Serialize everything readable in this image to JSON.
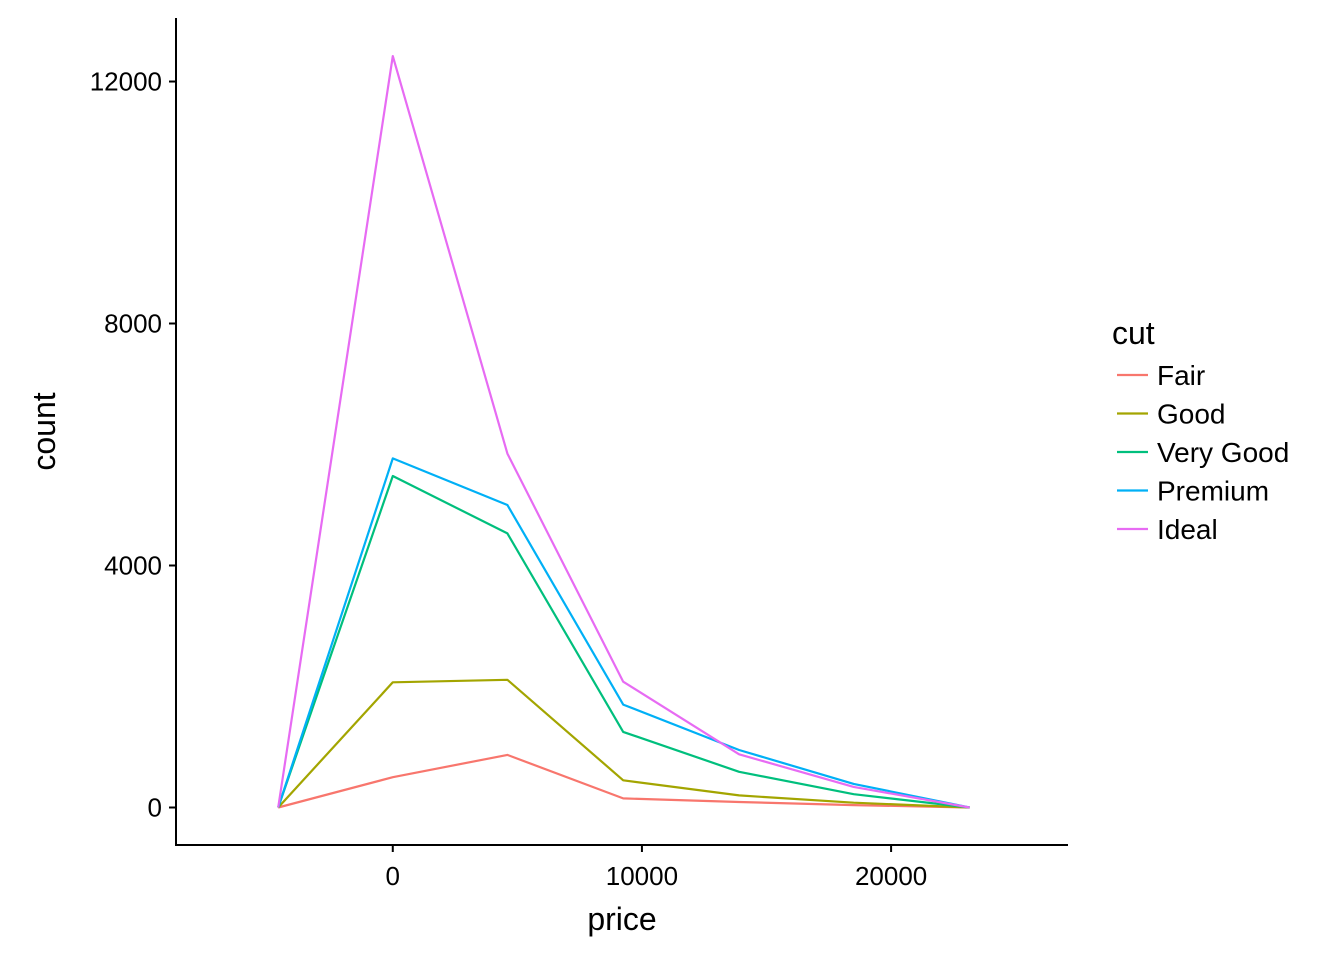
{
  "chart_data": {
    "type": "line",
    "xlabel": "price",
    "ylabel": "count",
    "xlim": [
      -8700,
      27100
    ],
    "ylim": [
      -620,
      13050
    ],
    "x_ticks": [
      0,
      10000,
      20000
    ],
    "y_ticks": [
      0,
      4000,
      8000,
      12000
    ],
    "grid": false,
    "legend": {
      "title": "cut",
      "placement": "right"
    },
    "x": [
      -4600,
      0,
      4600,
      9250,
      13900,
      18500,
      23150
    ],
    "series": [
      {
        "name": "Fair",
        "color": "#F8766D",
        "values": [
          0,
          500,
          870,
          150,
          90,
          40,
          0
        ]
      },
      {
        "name": "Good",
        "color": "#A3A500",
        "values": [
          0,
          2070,
          2110,
          450,
          200,
          80,
          0
        ]
      },
      {
        "name": "Very Good",
        "color": "#00BF7D",
        "values": [
          0,
          5480,
          4530,
          1250,
          590,
          220,
          0
        ]
      },
      {
        "name": "Premium",
        "color": "#00B0F6",
        "values": [
          0,
          5770,
          5000,
          1700,
          950,
          390,
          0
        ]
      },
      {
        "name": "Ideal",
        "color": "#E76BF3",
        "values": [
          0,
          12420,
          5850,
          2080,
          880,
          340,
          0
        ]
      }
    ]
  }
}
